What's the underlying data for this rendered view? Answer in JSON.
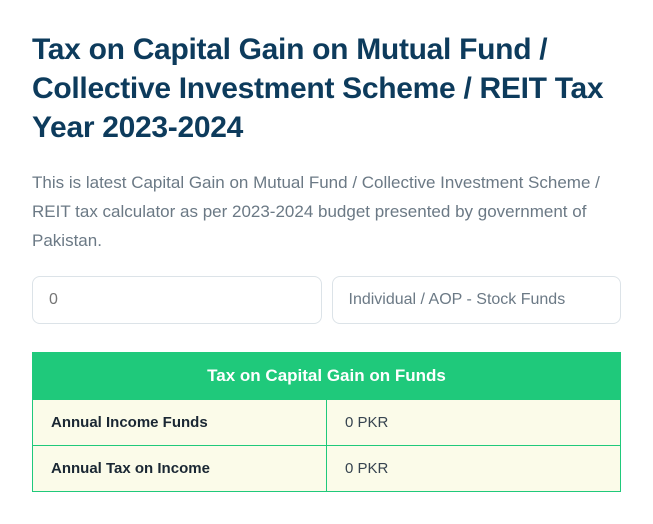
{
  "title": "Tax on Capital Gain on Mutual Fund / Collective Investment Scheme / REIT Tax Year 2023-2024",
  "description": "This is latest Capital Gain on Mutual Fund / Collective Investment Scheme / REIT tax calculator as per 2023-2024 budget presented by government of Pakistan.",
  "inputs": {
    "amount_placeholder": "0",
    "category_selected": "Individual / AOP - Stock Funds"
  },
  "table": {
    "header": "Tax on Capital Gain on Funds",
    "rows": [
      {
        "label": "Annual Income Funds",
        "value": "0 PKR"
      },
      {
        "label": "Annual Tax on Income",
        "value": "0 PKR"
      }
    ]
  },
  "colors": {
    "title": "#0d3b5c",
    "body_text": "#6b7985",
    "accent_green": "#1fc97b",
    "row_bg": "#fbfbe9",
    "border": "#dce3e8",
    "label_text": "#1a2733"
  }
}
